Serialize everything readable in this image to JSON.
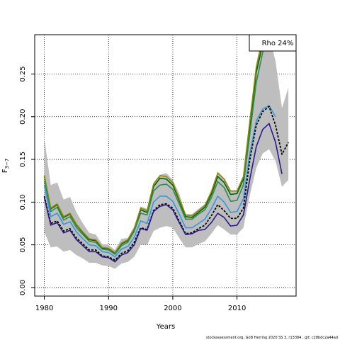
{
  "chart_data": {
    "type": "line",
    "xlabel": "Years",
    "ylabel": "F",
    "ylabel_sub": "3−7",
    "xlim": [
      1978.5,
      2019.2
    ],
    "ylim": [
      -0.01,
      0.296
    ],
    "xticks": [
      1980,
      1990,
      2000,
      2010
    ],
    "yticks": [
      0.0,
      0.05,
      0.1,
      0.15,
      0.2,
      0.25
    ],
    "ytick_labels": [
      "0.00",
      "0.05",
      "0.10",
      "0.15",
      "0.20",
      "0.25"
    ],
    "grid": true,
    "legend_text": "Rho 24%",
    "legend_position": "top-right",
    "footer": "stockassessment.org, GoB Herring 2020 SS 3, r13384 , git: c28bdc2a44ad",
    "band": {
      "x": [
        1980,
        1981,
        1982,
        1983,
        1984,
        1985,
        1986,
        1987,
        1988,
        1989,
        1990,
        1991,
        1992,
        1993,
        1994,
        1995,
        1996,
        1997,
        1998,
        1999,
        2000,
        2001,
        2002,
        2003,
        2004,
        2005,
        2006,
        2007,
        2008,
        2009,
        2010,
        2011,
        2012,
        2013,
        2014,
        2015,
        2016,
        2017,
        2018
      ],
      "upper": [
        0.175,
        0.12,
        0.123,
        0.103,
        0.106,
        0.088,
        0.075,
        0.064,
        0.062,
        0.051,
        0.05,
        0.044,
        0.057,
        0.058,
        0.072,
        0.095,
        0.092,
        0.123,
        0.132,
        0.134,
        0.126,
        0.11,
        0.086,
        0.086,
        0.092,
        0.098,
        0.114,
        0.136,
        0.128,
        0.114,
        0.114,
        0.131,
        0.2,
        0.262,
        0.3,
        0.296,
        0.265,
        0.21,
        0.234
      ],
      "lower": [
        0.065,
        0.047,
        0.048,
        0.042,
        0.044,
        0.038,
        0.034,
        0.029,
        0.029,
        0.026,
        0.025,
        0.022,
        0.028,
        0.03,
        0.036,
        0.05,
        0.05,
        0.066,
        0.07,
        0.072,
        0.07,
        0.058,
        0.047,
        0.047,
        0.051,
        0.054,
        0.063,
        0.073,
        0.068,
        0.062,
        0.062,
        0.07,
        0.108,
        0.14,
        0.157,
        0.162,
        0.148,
        0.118,
        0.126
      ]
    },
    "series": [
      {
        "color": "#006400",
        "width": 1.6,
        "dash": "",
        "x": [
          1980,
          1981,
          1982,
          1983,
          1984,
          1985,
          1986,
          1987,
          1988,
          1989,
          1990,
          1991,
          1992,
          1993,
          1994,
          1995,
          1996,
          1997,
          1998,
          1999,
          2000,
          2001,
          2002,
          2003,
          2004,
          2005,
          2006,
          2007,
          2008,
          2009,
          2010,
          2011,
          2012,
          2013,
          2014,
          2015
        ],
        "y": [
          0.13,
          0.092,
          0.097,
          0.082,
          0.086,
          0.073,
          0.064,
          0.056,
          0.055,
          0.046,
          0.045,
          0.04,
          0.051,
          0.055,
          0.068,
          0.091,
          0.088,
          0.118,
          0.128,
          0.127,
          0.12,
          0.102,
          0.083,
          0.082,
          0.088,
          0.094,
          0.109,
          0.13,
          0.123,
          0.109,
          0.11,
          0.127,
          0.19,
          0.252,
          0.285,
          0.31
        ]
      },
      {
        "color": "#8B8B00",
        "width": 1.6,
        "dash": "",
        "x": [
          1980,
          1981,
          1982,
          1983,
          1984,
          1985,
          1986,
          1987,
          1988,
          1989,
          1990,
          1991,
          1992,
          1993,
          1994,
          1995,
          1996,
          1997,
          1998,
          1999,
          2000,
          2001,
          2002,
          2003,
          2004,
          2005,
          2006,
          2007,
          2008,
          2009,
          2010,
          2011,
          2012,
          2013,
          2014,
          2015
        ],
        "y": [
          0.131,
          0.093,
          0.098,
          0.083,
          0.087,
          0.074,
          0.065,
          0.057,
          0.056,
          0.047,
          0.046,
          0.041,
          0.052,
          0.056,
          0.069,
          0.093,
          0.09,
          0.121,
          0.131,
          0.13,
          0.123,
          0.104,
          0.085,
          0.084,
          0.09,
          0.096,
          0.112,
          0.134,
          0.127,
          0.113,
          0.113,
          0.13,
          0.195,
          0.258,
          0.29,
          0.315
        ]
      },
      {
        "color": "#2E8B57",
        "width": 1.6,
        "dash": "",
        "x": [
          1980,
          1981,
          1982,
          1983,
          1984,
          1985,
          1986,
          1987,
          1988,
          1989,
          1990,
          1991,
          1992,
          1993,
          1994,
          1995,
          1996,
          1997,
          1998,
          1999,
          2000,
          2001,
          2002,
          2003,
          2004,
          2005,
          2006,
          2007,
          2008,
          2009,
          2010,
          2011,
          2012,
          2013,
          2014,
          2015
        ],
        "y": [
          0.125,
          0.089,
          0.094,
          0.079,
          0.083,
          0.07,
          0.062,
          0.054,
          0.053,
          0.045,
          0.044,
          0.039,
          0.049,
          0.053,
          0.066,
          0.087,
          0.085,
          0.113,
          0.12,
          0.121,
          0.115,
          0.098,
          0.08,
          0.08,
          0.086,
          0.091,
          0.105,
          0.124,
          0.117,
          0.101,
          0.102,
          0.12,
          0.18,
          0.24,
          0.275,
          0.3
        ]
      },
      {
        "color": "#3399DD",
        "width": 1.6,
        "dash": "",
        "x": [
          1980,
          1981,
          1982,
          1983,
          1984,
          1985,
          1986,
          1987,
          1988,
          1989,
          1990,
          1991,
          1992,
          1993,
          1994,
          1995,
          1996,
          1997,
          1998,
          1999,
          2000,
          2001,
          2002,
          2003,
          2004,
          2005,
          2006,
          2007,
          2008,
          2009,
          2010,
          2011,
          2012,
          2013,
          2014,
          2015,
          2016
        ],
        "y": [
          0.12,
          0.083,
          0.087,
          0.074,
          0.077,
          0.065,
          0.057,
          0.05,
          0.049,
          0.042,
          0.041,
          0.036,
          0.045,
          0.048,
          0.059,
          0.078,
          0.075,
          0.1,
          0.107,
          0.107,
          0.101,
          0.086,
          0.07,
          0.07,
          0.075,
          0.08,
          0.092,
          0.107,
          0.1,
          0.088,
          0.089,
          0.104,
          0.157,
          0.195,
          0.209,
          0.213,
          0.2
        ]
      },
      {
        "color": "#000000",
        "width": 1.8,
        "dash": "3,2",
        "x": [
          1980,
          1981,
          1982,
          1983,
          1984,
          1985,
          1986,
          1987,
          1988,
          1989,
          1990,
          1991,
          1992,
          1993,
          1994,
          1995,
          1996,
          1997,
          1998,
          1999,
          2000,
          2001,
          2002,
          2003,
          2004,
          2005,
          2006,
          2007,
          2008,
          2009,
          2010,
          2011,
          2012,
          2013,
          2014,
          2015,
          2016,
          2017,
          2018
        ],
        "y": [
          0.107,
          0.075,
          0.078,
          0.066,
          0.069,
          0.058,
          0.051,
          0.044,
          0.044,
          0.037,
          0.036,
          0.032,
          0.04,
          0.043,
          0.053,
          0.07,
          0.068,
          0.09,
          0.097,
          0.098,
          0.093,
          0.078,
          0.063,
          0.064,
          0.069,
          0.073,
          0.084,
          0.097,
          0.09,
          0.081,
          0.081,
          0.093,
          0.15,
          0.19,
          0.206,
          0.212,
          0.19,
          0.156,
          0.17
        ]
      },
      {
        "color": "#2A1A8A",
        "width": 1.6,
        "dash": "",
        "x": [
          1980,
          1981,
          1982,
          1983,
          1984,
          1985,
          1986,
          1987,
          1988,
          1989,
          1990,
          1991,
          1992,
          1993,
          1994,
          1995,
          1996,
          1997,
          1998,
          1999,
          2000,
          2001,
          2002,
          2003,
          2004,
          2005,
          2006,
          2007,
          2008,
          2009,
          2010,
          2011,
          2012,
          2013,
          2014,
          2015,
          2016,
          2017
        ],
        "y": [
          0.105,
          0.073,
          0.076,
          0.064,
          0.067,
          0.056,
          0.049,
          0.042,
          0.042,
          0.036,
          0.035,
          0.03,
          0.038,
          0.041,
          0.05,
          0.069,
          0.067,
          0.089,
          0.095,
          0.097,
          0.091,
          0.076,
          0.062,
          0.063,
          0.067,
          0.068,
          0.076,
          0.087,
          0.082,
          0.072,
          0.073,
          0.085,
          0.127,
          0.165,
          0.185,
          0.192,
          0.17,
          0.133
        ]
      }
    ]
  }
}
